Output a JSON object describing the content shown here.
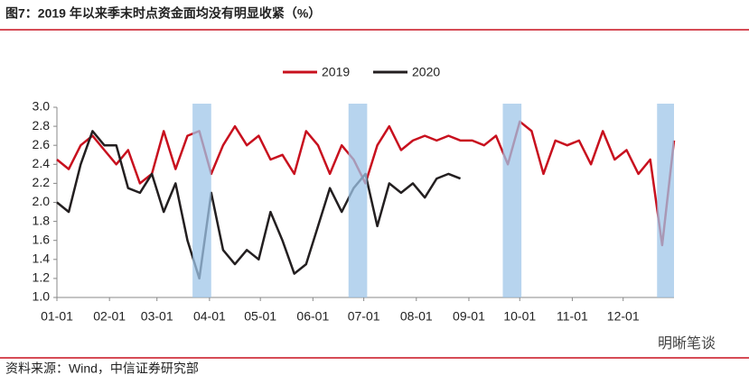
{
  "chart_data": {
    "type": "line",
    "title": "图7：2019 年以来季末时点资金面均没有明显收紧（%）",
    "source": "资料来源：Wind，中信证券研究部",
    "watermark": "明晰笔谈",
    "x": [
      "01-01",
      "01-08",
      "01-15",
      "01-22",
      "01-29",
      "02-05",
      "02-12",
      "02-19",
      "02-26",
      "03-05",
      "03-12",
      "03-19",
      "03-26",
      "04-02",
      "04-09",
      "04-16",
      "04-23",
      "04-30",
      "05-07",
      "05-14",
      "05-21",
      "05-28",
      "06-04",
      "06-11",
      "06-18",
      "06-25",
      "07-02",
      "07-09",
      "07-16",
      "07-23",
      "07-30",
      "08-06",
      "08-13",
      "08-20",
      "08-27",
      "09-03",
      "09-10",
      "09-17",
      "09-24",
      "10-01",
      "10-08",
      "10-15",
      "10-22",
      "10-29",
      "11-05",
      "11-12",
      "11-19",
      "11-26",
      "12-03",
      "12-10",
      "12-17",
      "12-24",
      "12-31"
    ],
    "series": [
      {
        "name": "2019",
        "color": "#c8101e",
        "values": [
          2.45,
          2.35,
          2.6,
          2.7,
          2.55,
          2.4,
          2.55,
          2.2,
          2.3,
          2.75,
          2.35,
          2.7,
          2.75,
          2.3,
          2.6,
          2.8,
          2.6,
          2.7,
          2.45,
          2.5,
          2.3,
          2.75,
          2.6,
          2.3,
          2.6,
          2.45,
          2.2,
          2.6,
          2.8,
          2.55,
          2.65,
          2.7,
          2.65,
          2.7,
          2.65,
          2.65,
          2.6,
          2.7,
          2.4,
          2.85,
          2.75,
          2.3,
          2.65,
          2.6,
          2.65,
          2.4,
          2.75,
          2.45,
          2.55,
          2.3,
          2.45,
          1.55,
          2.65
        ]
      },
      {
        "name": "2020",
        "color": "#231f20",
        "values": [
          2.0,
          1.9,
          2.4,
          2.75,
          2.6,
          2.6,
          2.15,
          2.1,
          2.3,
          1.9,
          2.2,
          1.6,
          1.2,
          2.1,
          1.5,
          1.35,
          1.5,
          1.4,
          1.9,
          1.6,
          1.25,
          1.35,
          1.75,
          2.15,
          1.9,
          2.15,
          2.3,
          1.75,
          2.2,
          2.1,
          2.2,
          2.05,
          2.25,
          2.3,
          2.25,
          null,
          null,
          null,
          null,
          null,
          null,
          null,
          null,
          null,
          null,
          null,
          null,
          null,
          null,
          null,
          null,
          null,
          null
        ]
      }
    ],
    "shaded_ranges": [
      [
        "03-22",
        "04-02"
      ],
      [
        "06-22",
        "07-03"
      ],
      [
        "09-21",
        "10-02"
      ],
      [
        "12-21",
        "12-31"
      ]
    ],
    "shade_color": "#9fc5e8",
    "ylim": [
      1.0,
      3.0
    ],
    "yticks": [
      {
        "value": 1.0,
        "label": "1.0"
      },
      {
        "value": 1.2,
        "label": "1.2"
      },
      {
        "value": 1.4,
        "label": "1.4"
      },
      {
        "value": 1.6,
        "label": "1.6"
      },
      {
        "value": 1.8,
        "label": "1.8"
      },
      {
        "value": 2.0,
        "label": "2.0"
      },
      {
        "value": 2.2,
        "label": "2.2"
      },
      {
        "value": 2.4,
        "label": "2.4"
      },
      {
        "value": 2.6,
        "label": "2.6"
      },
      {
        "value": 2.8,
        "label": "2.8"
      },
      {
        "value": 3.0,
        "label": "3.0"
      }
    ],
    "xticks": [
      "01-01",
      "02-01",
      "03-01",
      "04-01",
      "05-01",
      "06-01",
      "07-01",
      "08-01",
      "09-01",
      "10-01",
      "11-01",
      "12-01"
    ],
    "grid": false
  }
}
